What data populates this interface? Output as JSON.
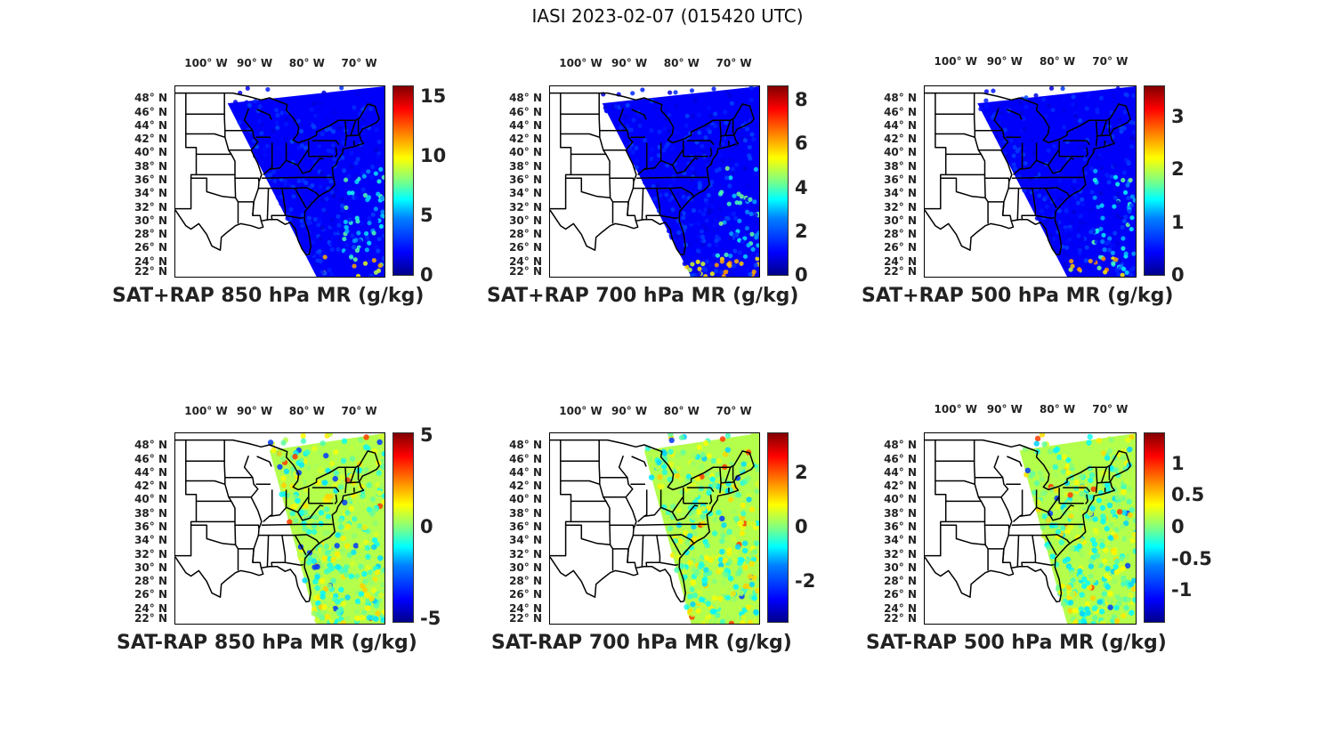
{
  "title": "IASI 2023-02-07 (015420 UTC)",
  "lon_labels": [
    "100° W",
    "90° W",
    "80° W",
    "70° W"
  ],
  "lat_labels": [
    "48° N",
    "46° N",
    "44° N",
    "42° N",
    "40° N",
    "38° N",
    "36° N",
    "34° N",
    "32° N",
    "30° N",
    "28° N",
    "26° N",
    "24° N",
    "22° N"
  ],
  "panels": [
    {
      "id": "sat-rap-sum-850",
      "title": "SAT+RAP 850 hPa MR (g/kg)",
      "cmin": 0,
      "cmax": 16,
      "ticks": [
        {
          "v": 0,
          "t": "0"
        },
        {
          "v": 5,
          "t": "5"
        },
        {
          "v": 10,
          "t": "10"
        },
        {
          "v": 15,
          "t": "15"
        }
      ],
      "field": "blue-low",
      "swath_west_top_lon": -96
    },
    {
      "id": "sat-rap-sum-700",
      "title": "SAT+RAP 700 hPa MR (g/kg)",
      "cmin": 0,
      "cmax": 8.7,
      "ticks": [
        {
          "v": 0,
          "t": "0"
        },
        {
          "v": 2,
          "t": "2"
        },
        {
          "v": 4,
          "t": "4"
        },
        {
          "v": 6,
          "t": "6"
        },
        {
          "v": 8,
          "t": "8"
        }
      ],
      "field": "blue-low",
      "swath_west_top_lon": -96
    },
    {
      "id": "sat-rap-sum-500",
      "title": "SAT+RAP 500 hPa MR (g/kg)",
      "cmin": 0,
      "cmax": 3.6,
      "ticks": [
        {
          "v": 0,
          "t": "0"
        },
        {
          "v": 1,
          "t": "1"
        },
        {
          "v": 2,
          "t": "2"
        },
        {
          "v": 3,
          "t": "3"
        }
      ],
      "field": "blue-low",
      "swath_west_top_lon": -96
    },
    {
      "id": "sat-rap-diff-850",
      "title": "SAT-RAP 850 hPa MR (g/kg)",
      "cmin": -5.2,
      "cmax": 5.2,
      "ticks": [
        {
          "v": -5,
          "t": "-5"
        },
        {
          "v": 0,
          "t": "0"
        },
        {
          "v": 5,
          "t": "5"
        }
      ],
      "field": "diff",
      "swath_west_top_lon": -88
    },
    {
      "id": "sat-rap-diff-700",
      "title": "SAT-RAP 700 hPa MR (g/kg)",
      "cmin": -3.5,
      "cmax": 3.5,
      "ticks": [
        {
          "v": -2,
          "t": "-2"
        },
        {
          "v": 0,
          "t": "0"
        },
        {
          "v": 2,
          "t": "2"
        }
      ],
      "field": "diff",
      "swath_west_top_lon": -88
    },
    {
      "id": "sat-rap-diff-500",
      "title": "SAT-RAP 500 hPa MR (g/kg)",
      "cmin": -1.5,
      "cmax": 1.5,
      "ticks": [
        {
          "v": -1,
          "t": "-1"
        },
        {
          "v": -0.5,
          "t": "-0.5"
        },
        {
          "v": 0,
          "t": "0"
        },
        {
          "v": 0.5,
          "t": "0.5"
        },
        {
          "v": 1,
          "t": "1"
        }
      ],
      "field": "diff",
      "swath_west_top_lon": -88
    }
  ],
  "map_extent": {
    "lon_min": -106,
    "lon_max": -66,
    "lat_min": 22,
    "lat_max": 50
  }
}
